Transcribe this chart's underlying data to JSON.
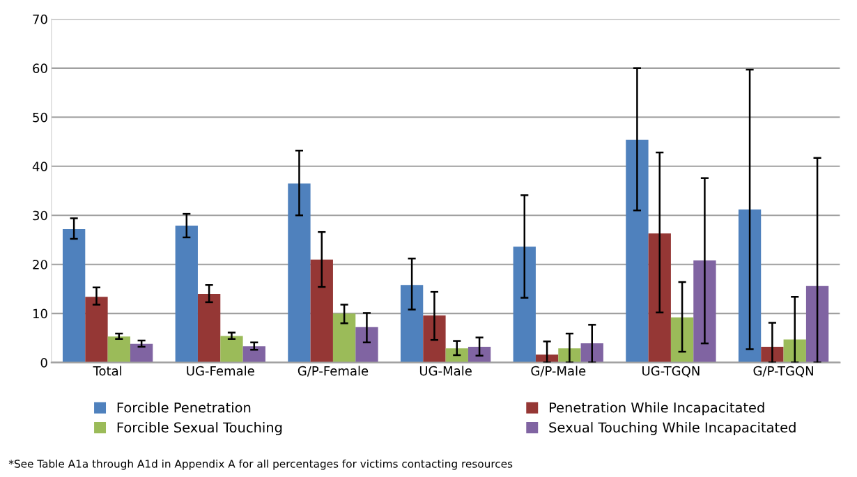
{
  "chart_data": {
    "type": "bar",
    "categories": [
      "Total",
      "UG-Female",
      "G/P-Female",
      "UG-Male",
      "G/P-Male",
      "UG-TGQN",
      "G/P-TGQN"
    ],
    "series": [
      {
        "name": "Forcible Penetration",
        "color": "#4f81bd",
        "values": [
          27.2,
          27.9,
          36.5,
          15.8,
          23.6,
          45.4,
          31.2
        ],
        "errors": [
          [
            25.2,
            29.4
          ],
          [
            25.5,
            30.3
          ],
          [
            30.0,
            43.2
          ],
          [
            10.8,
            21.2
          ],
          [
            13.2,
            34.1
          ],
          [
            31.0,
            60.0
          ],
          [
            2.7,
            59.7
          ]
        ]
      },
      {
        "name": "Penetration While Incapacitated",
        "color": "#953735",
        "values": [
          13.4,
          14.0,
          21.0,
          9.6,
          1.6,
          26.3,
          3.2
        ],
        "errors": [
          [
            11.8,
            15.3
          ],
          [
            12.3,
            15.8
          ],
          [
            15.4,
            26.6
          ],
          [
            4.6,
            14.4
          ],
          [
            0,
            4.3
          ],
          [
            10.2,
            42.8
          ],
          [
            0,
            8.1
          ]
        ]
      },
      {
        "name": "Forcible Sexual Touching",
        "color": "#9bbb59",
        "values": [
          5.3,
          5.4,
          10.0,
          2.9,
          2.9,
          9.2,
          4.7
        ],
        "errors": [
          [
            4.8,
            5.9
          ],
          [
            4.8,
            6.1
          ],
          [
            8.0,
            11.8
          ],
          [
            1.5,
            4.4
          ],
          [
            0,
            5.9
          ],
          [
            2.2,
            16.4
          ],
          [
            0,
            13.4
          ]
        ]
      },
      {
        "name": "Sexual Touching While Incapacitated",
        "color": "#8064a2",
        "values": [
          3.8,
          3.3,
          7.2,
          3.2,
          3.9,
          20.8,
          15.6
        ],
        "errors": [
          [
            3.2,
            4.5
          ],
          [
            2.6,
            4.1
          ],
          [
            4.1,
            10.1
          ],
          [
            1.4,
            5.1
          ],
          [
            0,
            7.7
          ],
          [
            3.9,
            37.6
          ],
          [
            0,
            41.7
          ]
        ]
      }
    ],
    "ylim": [
      0,
      70
    ],
    "yticks": [
      0,
      10,
      20,
      30,
      40,
      50,
      60,
      70
    ],
    "grid": "y",
    "legend": "bottom",
    "annotations": [
      "*See Table A1a through A1d in Appendix A for all percentages for victims contacting resources"
    ]
  }
}
